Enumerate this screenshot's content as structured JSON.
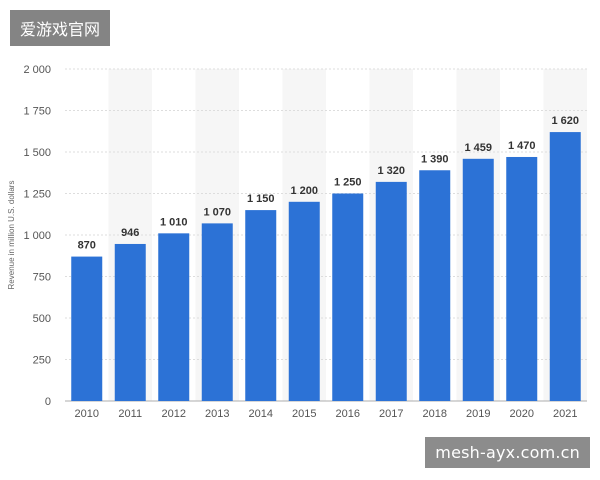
{
  "watermarks": {
    "top_text": "爱游戏官网",
    "bottom_text": "mesh-ayx.com.cn"
  },
  "chart_data": {
    "type": "bar",
    "ylabel": "Revenue in million U.S. dollars",
    "ylim": [
      0,
      2000
    ],
    "yticks": [
      0,
      250,
      500,
      750,
      1000,
      1250,
      1500,
      1750,
      2000
    ],
    "ytick_labels": [
      "0",
      "250",
      "500",
      "750",
      "1 000",
      "1 250",
      "1 500",
      "1 750",
      "2 000"
    ],
    "categories": [
      "2010",
      "2011",
      "2012",
      "2013",
      "2014",
      "2015",
      "2016",
      "2017",
      "2018",
      "2019",
      "2020",
      "2021"
    ],
    "values": [
      870,
      946,
      1010,
      1070,
      1150,
      1200,
      1250,
      1320,
      1390,
      1459,
      1470,
      1620
    ],
    "value_labels": [
      "870",
      "946",
      "1 010",
      "1 070",
      "1 150",
      "1 200",
      "1 250",
      "1 320",
      "1 390",
      "1 459",
      "1 470",
      "1 620"
    ],
    "bar_color": "#2c72d6",
    "grid": true,
    "band_color": "#f6f6f6"
  }
}
